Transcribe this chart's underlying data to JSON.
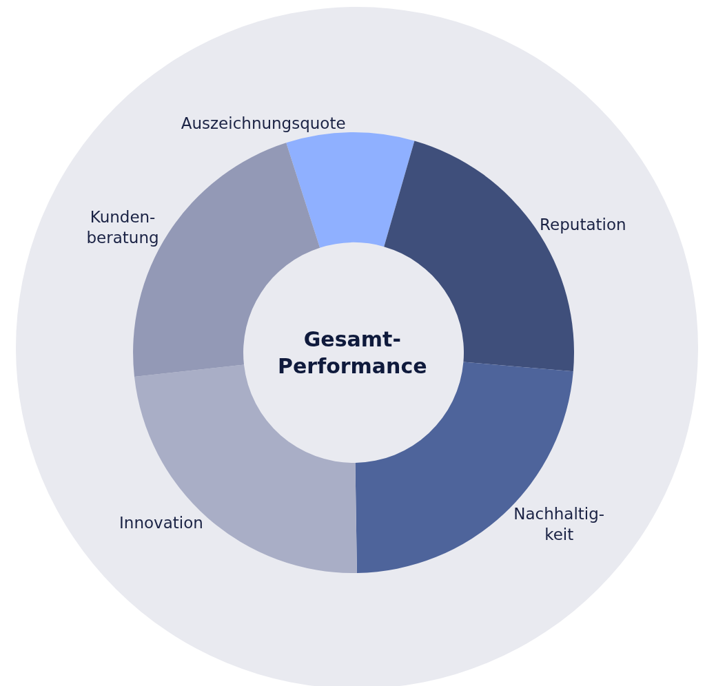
{
  "chart_data": {
    "type": "donut",
    "title": "Gesamt-\nPerformance",
    "categories": [
      "Auszeichnungsquote",
      "Reputation",
      "Nachhaltig-\nkeit",
      "Innovation",
      "Kunden-\nberatung"
    ],
    "values": [
      9.4,
      21.9,
      23.4,
      23.5,
      21.8
    ],
    "colors": [
      "#8fb0ff",
      "#3f4f7b",
      "#4e649b",
      "#a9aec6",
      "#9399b6"
    ],
    "legend": false
  }
}
